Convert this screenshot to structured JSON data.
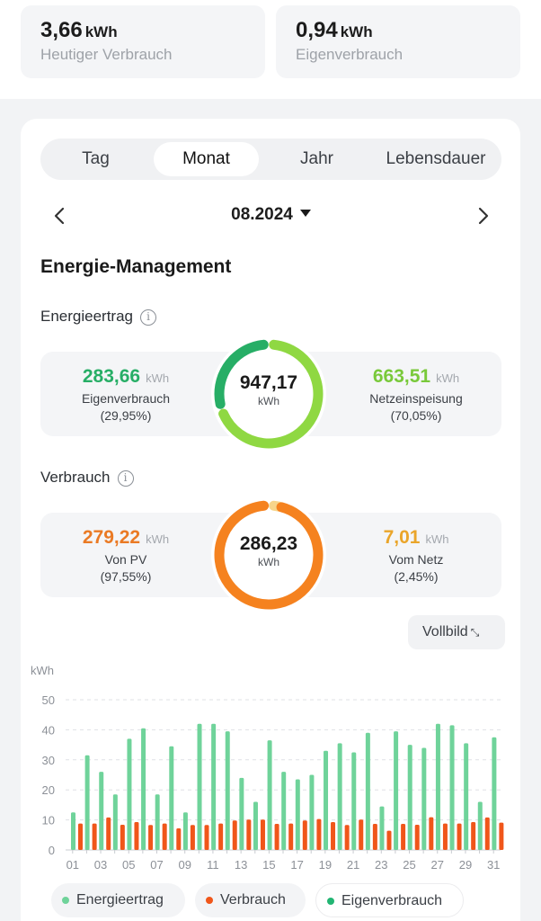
{
  "top": {
    "today": {
      "value": "3,66",
      "unit": "kWh",
      "label": "Heutiger Verbrauch"
    },
    "self": {
      "value": "0,94",
      "unit": "kWh",
      "label": "Eigenverbrauch"
    }
  },
  "tabs": [
    {
      "label": "Tag",
      "active": false
    },
    {
      "label": "Monat",
      "active": true
    },
    {
      "label": "Jahr",
      "active": false
    },
    {
      "label": "Lebensdauer",
      "active": false
    }
  ],
  "date": {
    "label": "08.2024"
  },
  "section_title": "Energie-Management",
  "energy_yield": {
    "title": "Energieertrag",
    "total": "947,17",
    "total_unit": "kWh",
    "left": {
      "value": "283,66",
      "unit": "kWh",
      "name": "Eigenverbrauch",
      "percent": "(29,95%)",
      "fraction": 0.2995,
      "color": "#27ae66"
    },
    "right": {
      "value": "663,51",
      "unit": "kWh",
      "name": "Netzeinspeisung",
      "percent": "(70,05%)",
      "fraction": 0.7005,
      "color": "#8fd842"
    }
  },
  "consumption": {
    "title": "Verbrauch",
    "total": "286,23",
    "total_unit": "kWh",
    "left": {
      "value": "279,22",
      "unit": "kWh",
      "name": "Von PV",
      "percent": "(97,55%)",
      "fraction": 0.9755,
      "color": "#f5821f"
    },
    "right": {
      "value": "7,01",
      "unit": "kWh",
      "name": "Vom Netz",
      "percent": "(2,45%)",
      "fraction": 0.0245,
      "color": "#f0b429"
    }
  },
  "vollbild_label": "Vollbild",
  "legend": [
    {
      "label": "Energieertrag",
      "color": "#6fd39a"
    },
    {
      "label": "Verbrauch",
      "color": "#f0561a"
    },
    {
      "label": "Eigenverbrauch",
      "color": "#22b573"
    }
  ],
  "chart_data": {
    "type": "bar",
    "ylabel": "kWh",
    "ylim": [
      0,
      50
    ],
    "yticks": [
      0,
      10,
      20,
      30,
      40,
      50
    ],
    "grid": true,
    "categories": [
      "01",
      "02",
      "03",
      "04",
      "05",
      "06",
      "07",
      "08",
      "09",
      "10",
      "11",
      "12",
      "13",
      "14",
      "15",
      "16",
      "17",
      "18",
      "19",
      "20",
      "21",
      "22",
      "23",
      "24",
      "25",
      "26",
      "27",
      "28",
      "29",
      "30",
      "31"
    ],
    "xtick_labels": [
      "01",
      "03",
      "05",
      "07",
      "09",
      "11",
      "13",
      "15",
      "17",
      "19",
      "21",
      "23",
      "25",
      "27",
      "29",
      "31"
    ],
    "series": [
      {
        "name": "Energieertrag",
        "color": "#6fd39a",
        "values": [
          12.5,
          31.5,
          26,
          18.5,
          37,
          40.5,
          18.5,
          34.5,
          12.5,
          42,
          42,
          39.5,
          24,
          16,
          36.5,
          26,
          23.5,
          25,
          33,
          35.5,
          32.5,
          39,
          14.5,
          39.5,
          35,
          34,
          42,
          41.5,
          35.5,
          16,
          37.5
        ]
      },
      {
        "name": "Verbrauch",
        "color": "#f0561a",
        "values": [
          8.8,
          8.8,
          10.8,
          8.4,
          9.3,
          8.3,
          8.8,
          7.2,
          8.3,
          8.3,
          8.8,
          9.8,
          10.1,
          10.1,
          8.7,
          8.8,
          9.8,
          10.3,
          9.3,
          8.3,
          10.1,
          8.7,
          6.4,
          8.7,
          8.4,
          10.9,
          8.8,
          8.8,
          9.3,
          10.8,
          9.1
        ]
      }
    ]
  }
}
